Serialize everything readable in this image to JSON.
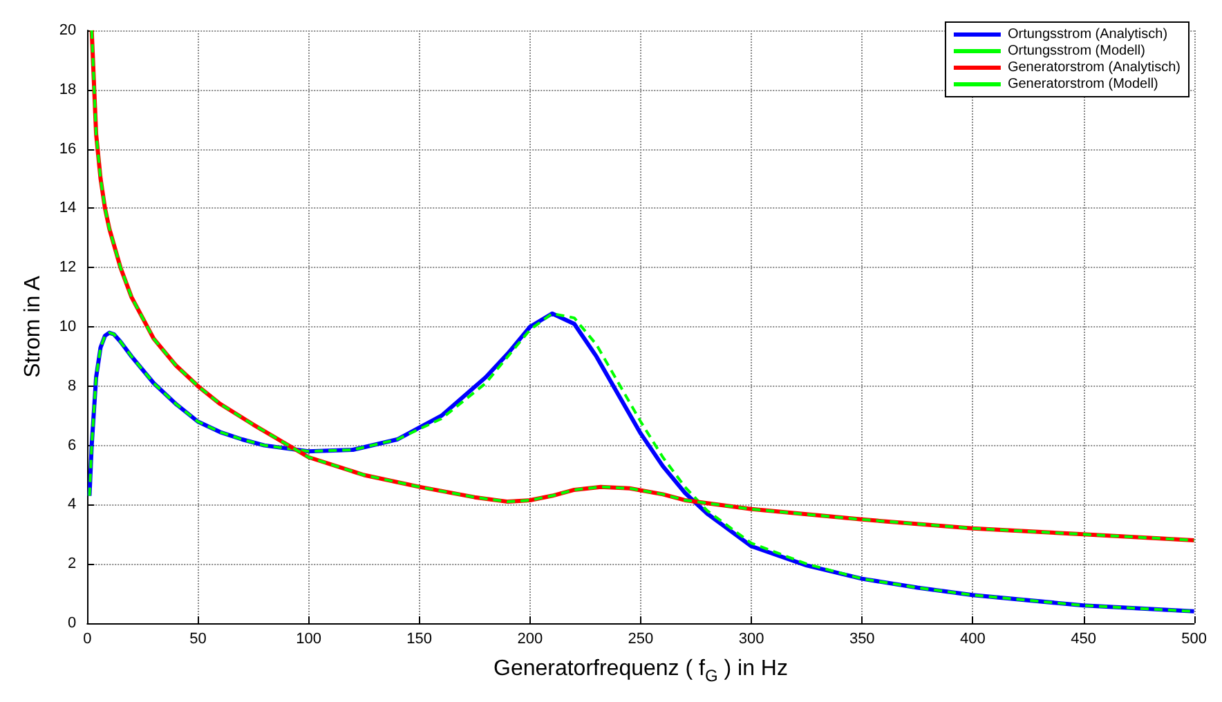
{
  "chart_data": {
    "type": "line",
    "xlabel": "Generatorfrequenz ( f$_{G}$ ) in Hz",
    "ylabel": "Strom in A",
    "xlim": [
      0,
      500
    ],
    "xticks": [
      0,
      50,
      100,
      150,
      200,
      250,
      300,
      350,
      400,
      450,
      500
    ],
    "ylim": [
      0,
      20
    ],
    "yticks": [
      0,
      2,
      4,
      6,
      8,
      10,
      12,
      14,
      16,
      18,
      20
    ],
    "grid": true,
    "legend": "top right",
    "marker": "none",
    "series": [
      {
        "name": "Ortungsstrom (Analytisch)",
        "color": "#0000ff",
        "line_style": "solid",
        "x": [
          1,
          2,
          4,
          6,
          8,
          10,
          12,
          15,
          20,
          30,
          40,
          50,
          60,
          70,
          80,
          100,
          120,
          140,
          160,
          180,
          190,
          200,
          210,
          220,
          230,
          240,
          250,
          260,
          270,
          280,
          300,
          325,
          350,
          375,
          400,
          450,
          500
        ],
        "values": [
          4.3,
          6.0,
          8.3,
          9.3,
          9.7,
          9.8,
          9.75,
          9.5,
          9.0,
          8.1,
          7.4,
          6.8,
          6.45,
          6.2,
          6.0,
          5.8,
          5.85,
          6.2,
          7.0,
          8.3,
          9.1,
          10.0,
          10.45,
          10.1,
          9.0,
          7.7,
          6.4,
          5.3,
          4.4,
          3.7,
          2.6,
          1.95,
          1.5,
          1.2,
          0.95,
          0.6,
          0.4
        ]
      },
      {
        "name": "Ortungsstrom (Modell)",
        "color": "#00ff00",
        "line_style": "dashed",
        "x": [
          1,
          2,
          4,
          6,
          8,
          10,
          12,
          15,
          20,
          30,
          40,
          50,
          60,
          70,
          80,
          100,
          120,
          140,
          160,
          180,
          190,
          200,
          210,
          220,
          230,
          240,
          250,
          260,
          270,
          280,
          300,
          325,
          350,
          375,
          400,
          450,
          500
        ],
        "values": [
          4.3,
          6.0,
          8.3,
          9.3,
          9.7,
          9.8,
          9.75,
          9.5,
          9.0,
          8.1,
          7.4,
          6.8,
          6.45,
          6.2,
          6.0,
          5.8,
          5.85,
          6.2,
          6.9,
          8.1,
          9.0,
          9.9,
          10.45,
          10.3,
          9.4,
          8.1,
          6.8,
          5.6,
          4.6,
          3.8,
          2.7,
          2.0,
          1.5,
          1.2,
          0.95,
          0.6,
          0.4
        ]
      },
      {
        "name": "Generatorstrom (Analytisch)",
        "color": "#ff0000",
        "line_style": "solid",
        "x": [
          2,
          4,
          6,
          8,
          10,
          15,
          20,
          30,
          40,
          50,
          60,
          75,
          100,
          125,
          150,
          175,
          190,
          200,
          210,
          220,
          232,
          245,
          260,
          270,
          280,
          300,
          350,
          400,
          450,
          500
        ],
        "values": [
          20,
          16.5,
          15,
          14.0,
          13.3,
          12.0,
          11.0,
          9.6,
          8.7,
          8.0,
          7.4,
          6.7,
          5.6,
          5.0,
          4.6,
          4.25,
          4.1,
          4.15,
          4.3,
          4.5,
          4.6,
          4.55,
          4.35,
          4.15,
          4.05,
          3.85,
          3.5,
          3.2,
          3.0,
          2.8
        ]
      },
      {
        "name": "Generatorstrom (Modell)",
        "color": "#00ff00",
        "line_style": "dashed",
        "x": [
          2,
          4,
          6,
          8,
          10,
          15,
          20,
          30,
          40,
          50,
          60,
          75,
          100,
          125,
          150,
          175,
          190,
          200,
          210,
          220,
          232,
          245,
          260,
          270,
          280,
          300,
          350,
          400,
          450,
          500
        ],
        "values": [
          20,
          16.5,
          15,
          14.0,
          13.3,
          12.0,
          11.0,
          9.6,
          8.7,
          8.0,
          7.4,
          6.7,
          5.6,
          5.0,
          4.6,
          4.25,
          4.1,
          4.15,
          4.3,
          4.5,
          4.6,
          4.55,
          4.35,
          4.15,
          4.05,
          3.85,
          3.5,
          3.2,
          3.0,
          2.8
        ]
      }
    ]
  }
}
